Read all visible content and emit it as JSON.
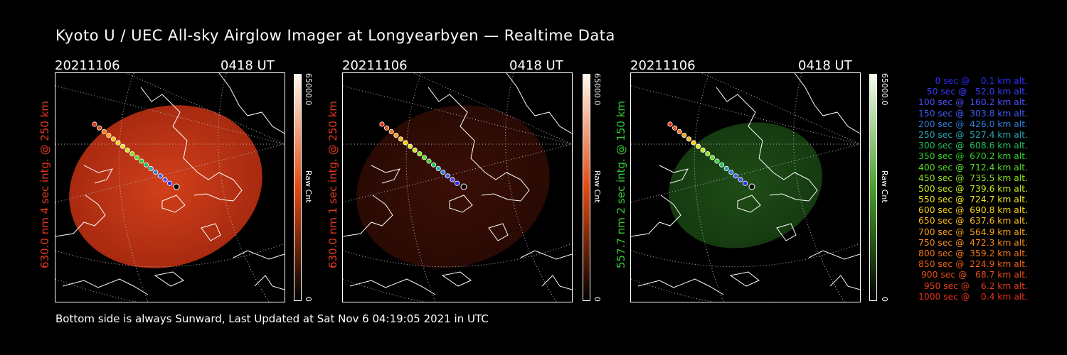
{
  "title": "Kyoto U / UEC All-sky Airglow Imager at Longyearbyen — Realtime Data",
  "footer": "Bottom side is always Sunward, Last Updated at Sat Nov  6 04:19:05 2021 in UTC",
  "panels": [
    {
      "date": "20211106",
      "time": "0418 UT",
      "side_label": "630.0 nm 4 sec intg. @ 250 km",
      "label_color": "#e8391c",
      "cbar_max": "65000.0",
      "cbar_min": "0",
      "cbar_unit": "Raw Cnt",
      "cbar_top": "#fff7ec",
      "cbar_mid": "#e34a12",
      "cbar_bottom": "#000000",
      "glow_center": "#d2401a",
      "glow_edge": "#a82a10"
    },
    {
      "date": "20211106",
      "time": "0418 UT",
      "side_label": "630.0 nm 1 sec intg. @ 250 km",
      "label_color": "#e8391c",
      "cbar_max": "65000.0",
      "cbar_min": "0",
      "cbar_unit": "Raw Cnt",
      "cbar_top": "#fff7ec",
      "cbar_mid": "#e34a12",
      "cbar_bottom": "#000000",
      "glow_center": "#3a0f06",
      "glow_edge": "#2a0a04"
    },
    {
      "date": "20211106",
      "time": "0418 UT",
      "side_label": "557.7 nm 2 sec intg. @ 150 km",
      "label_color": "#33cc33",
      "cbar_max": "65000.0",
      "cbar_min": "0",
      "cbar_unit": "Raw Cnt",
      "cbar_top": "#f7fcf0",
      "cbar_mid": "#4aa02c",
      "cbar_bottom": "#000000",
      "glow_center": "#1f4d17",
      "glow_edge": "#153a10"
    }
  ],
  "legend": [
    {
      "text": "   0 sec @    0.1 km alt.",
      "color": "#2b2bff"
    },
    {
      "text": "  50 sec @   52.0 km alt.",
      "color": "#3a3aff"
    },
    {
      "text": " 100 sec @  160.2 km alt.",
      "color": "#4d4dff"
    },
    {
      "text": " 150 sec @  303.8 km alt.",
      "color": "#3d5cf0"
    },
    {
      "text": " 200 sec @  426.0 km alt.",
      "color": "#2f7fe0"
    },
    {
      "text": " 250 sec @  527.4 km alt.",
      "color": "#2aa6b5"
    },
    {
      "text": " 300 sec @  608.6 km alt.",
      "color": "#22c060"
    },
    {
      "text": " 350 sec @  670.2 km alt.",
      "color": "#2ed22e"
    },
    {
      "text": " 400 sec @  712.4 km alt.",
      "color": "#55dd22"
    },
    {
      "text": " 450 sec @  735.5 km alt.",
      "color": "#8ee022"
    },
    {
      "text": " 500 sec @  739.6 km alt.",
      "color": "#c6e81e"
    },
    {
      "text": " 550 sec @  724.7 km alt.",
      "color": "#ece41c"
    },
    {
      "text": " 600 sec @  690.8 km alt.",
      "color": "#f5d01a"
    },
    {
      "text": " 650 sec @  637.6 km alt.",
      "color": "#f7b81a"
    },
    {
      "text": " 700 sec @  564.9 km alt.",
      "color": "#f7a01a"
    },
    {
      "text": " 750 sec @  472.3 km alt.",
      "color": "#f78a1a"
    },
    {
      "text": " 800 sec @  359.2 km alt.",
      "color": "#f27418"
    },
    {
      "text": " 850 sec @  224.9 km alt.",
      "color": "#ee6018"
    },
    {
      "text": " 900 sec @   68.7 km alt.",
      "color": "#ea4c18"
    },
    {
      "text": " 950 sec @    6.2 km alt.",
      "color": "#e63c18"
    },
    {
      "text": "1000 sec @    0.4 km alt.",
      "color": "#e22e18"
    }
  ]
}
